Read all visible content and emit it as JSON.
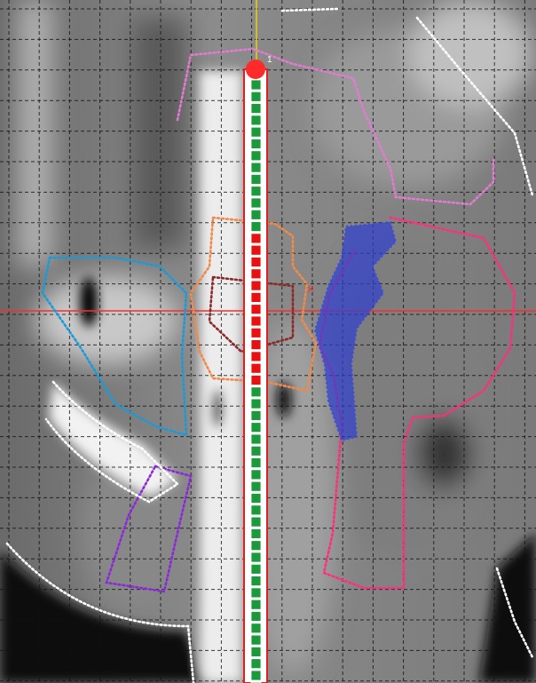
{
  "needle": {
    "label": "1"
  }
}
